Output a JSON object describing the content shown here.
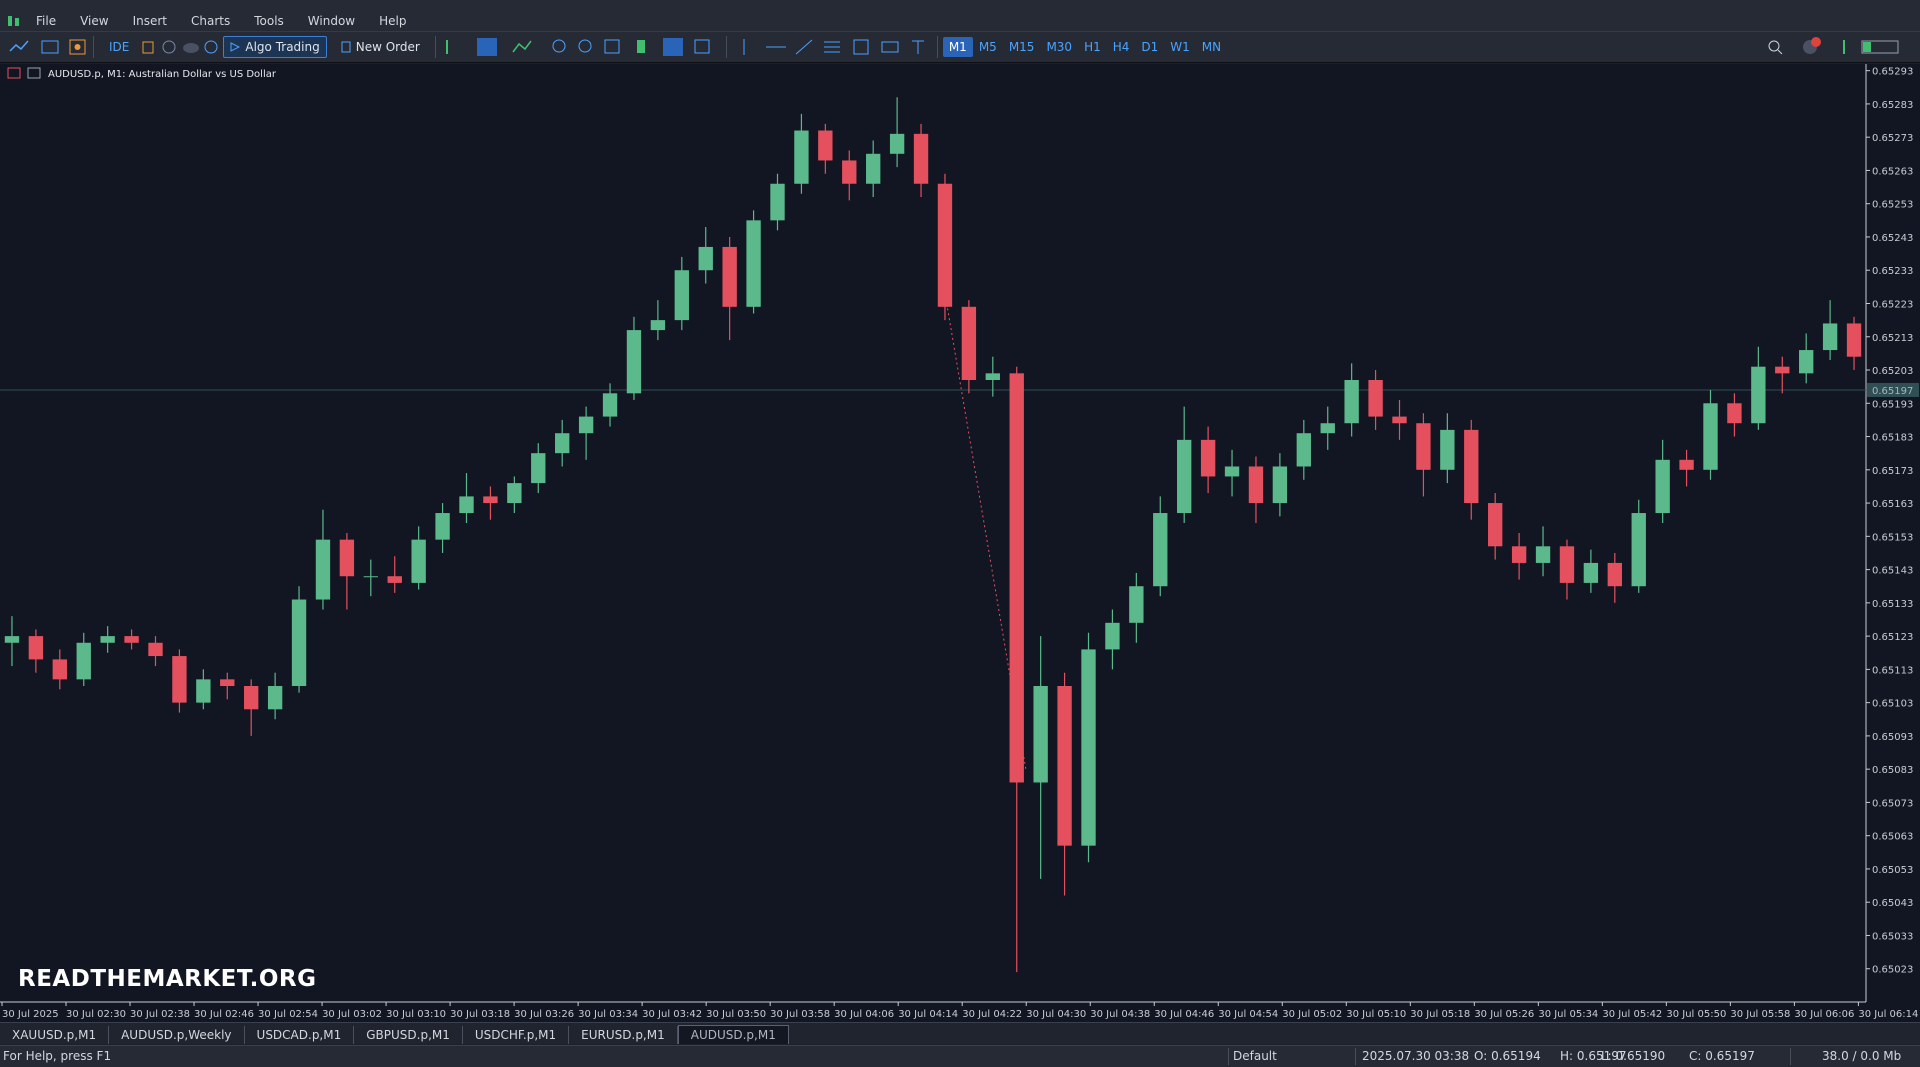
{
  "menu": [
    "File",
    "View",
    "Insert",
    "Charts",
    "Tools",
    "Window",
    "Help"
  ],
  "toolbar": {
    "ide": "IDE",
    "algo_trading": "Algo Trading",
    "new_order": "New Order",
    "timeframes": [
      "M1",
      "M5",
      "M15",
      "M30",
      "H1",
      "H4",
      "D1",
      "W1",
      "MN"
    ]
  },
  "chart_data": {
    "type": "candlestick",
    "title": "AUDUSD.p, M1:  Australian Dollar vs US Dollar",
    "watermark": "READTHEMARKET.ORG",
    "up_color": "#5bb98c",
    "down_color": "#e5505f",
    "grid": false,
    "ylim": [
      0.65013,
      0.65295
    ],
    "yticks": [
      0.65293,
      0.65283,
      0.65273,
      0.65263,
      0.65253,
      0.65243,
      0.65233,
      0.65223,
      0.65213,
      0.65203,
      0.65193,
      0.65183,
      0.65173,
      0.65163,
      0.65153,
      0.65143,
      0.65133,
      0.65123,
      0.65113,
      0.65103,
      0.65093,
      0.65083,
      0.65073,
      0.65063,
      0.65053,
      0.65043,
      0.65033,
      0.65023
    ],
    "bid": 0.65197,
    "x_labels": [
      "30 Jul 2025",
      "30 Jul 02:30",
      "30 Jul 02:38",
      "30 Jul 02:46",
      "30 Jul 02:54",
      "30 Jul 03:02",
      "30 Jul 03:10",
      "30 Jul 03:18",
      "30 Jul 03:26",
      "30 Jul 03:34",
      "30 Jul 03:42",
      "30 Jul 03:50",
      "30 Jul 03:58",
      "30 Jul 04:06",
      "30 Jul 04:14",
      "30 Jul 04:22",
      "30 Jul 04:30",
      "30 Jul 04:38",
      "30 Jul 04:46",
      "30 Jul 04:54",
      "30 Jul 05:02",
      "30 Jul 05:10",
      "30 Jul 05:18",
      "30 Jul 05:26",
      "30 Jul 05:34",
      "30 Jul 05:42",
      "30 Jul 05:50",
      "30 Jul 05:58",
      "30 Jul 06:06",
      "30 Jul 06:14"
    ],
    "ohlc": [
      [
        0.65121,
        0.65129,
        0.65114,
        0.65123
      ],
      [
        0.65123,
        0.65125,
        0.65112,
        0.65116
      ],
      [
        0.65116,
        0.65119,
        0.65107,
        0.6511
      ],
      [
        0.6511,
        0.65124,
        0.65108,
        0.65121
      ],
      [
        0.65121,
        0.65126,
        0.65118,
        0.65123
      ],
      [
        0.65123,
        0.65125,
        0.65119,
        0.65121
      ],
      [
        0.65121,
        0.65123,
        0.65114,
        0.65117
      ],
      [
        0.65117,
        0.65119,
        0.651,
        0.65103
      ],
      [
        0.65103,
        0.65113,
        0.65101,
        0.6511
      ],
      [
        0.6511,
        0.65112,
        0.65104,
        0.65108
      ],
      [
        0.65108,
        0.6511,
        0.65093,
        0.65101
      ],
      [
        0.65101,
        0.65112,
        0.65098,
        0.65108
      ],
      [
        0.65108,
        0.65138,
        0.65106,
        0.65134
      ],
      [
        0.65134,
        0.65161,
        0.65131,
        0.65152
      ],
      [
        0.65152,
        0.65154,
        0.65131,
        0.65141
      ],
      [
        0.65141,
        0.65146,
        0.65135,
        0.65141
      ],
      [
        0.65141,
        0.65147,
        0.65136,
        0.65139
      ],
      [
        0.65139,
        0.65156,
        0.65137,
        0.65152
      ],
      [
        0.65152,
        0.65163,
        0.65148,
        0.6516
      ],
      [
        0.6516,
        0.65172,
        0.65157,
        0.65165
      ],
      [
        0.65165,
        0.65168,
        0.65158,
        0.65163
      ],
      [
        0.65163,
        0.65171,
        0.6516,
        0.65169
      ],
      [
        0.65169,
        0.65181,
        0.65166,
        0.65178
      ],
      [
        0.65178,
        0.65188,
        0.65174,
        0.65184
      ],
      [
        0.65184,
        0.65192,
        0.65176,
        0.65189
      ],
      [
        0.65189,
        0.65199,
        0.65186,
        0.65196
      ],
      [
        0.65196,
        0.65219,
        0.65194,
        0.65215
      ],
      [
        0.65215,
        0.65224,
        0.65212,
        0.65218
      ],
      [
        0.65218,
        0.65237,
        0.65215,
        0.65233
      ],
      [
        0.65233,
        0.65246,
        0.65229,
        0.6524
      ],
      [
        0.6524,
        0.65243,
        0.65212,
        0.65222
      ],
      [
        0.65222,
        0.65251,
        0.6522,
        0.65248
      ],
      [
        0.65248,
        0.65262,
        0.65245,
        0.65259
      ],
      [
        0.65259,
        0.6528,
        0.65256,
        0.65275
      ],
      [
        0.65275,
        0.65277,
        0.65262,
        0.65266
      ],
      [
        0.65266,
        0.65269,
        0.65254,
        0.65259
      ],
      [
        0.65259,
        0.65272,
        0.65255,
        0.65268
      ],
      [
        0.65268,
        0.65285,
        0.65264,
        0.65274
      ],
      [
        0.65274,
        0.65277,
        0.65255,
        0.65259
      ],
      [
        0.65259,
        0.65262,
        0.65218,
        0.65222
      ],
      [
        0.65222,
        0.65224,
        0.65196,
        0.652
      ],
      [
        0.652,
        0.65207,
        0.65195,
        0.65202
      ],
      [
        0.65202,
        0.65204,
        0.65022,
        0.65079
      ],
      [
        0.65079,
        0.65123,
        0.6505,
        0.65108
      ],
      [
        0.65108,
        0.65112,
        0.65045,
        0.6506
      ],
      [
        0.6506,
        0.65124,
        0.65055,
        0.65119
      ],
      [
        0.65119,
        0.65131,
        0.65113,
        0.65127
      ],
      [
        0.65127,
        0.65142,
        0.65121,
        0.65138
      ],
      [
        0.65138,
        0.65165,
        0.65135,
        0.6516
      ],
      [
        0.6516,
        0.65192,
        0.65157,
        0.65182
      ],
      [
        0.65182,
        0.65186,
        0.65166,
        0.65171
      ],
      [
        0.65171,
        0.65179,
        0.65165,
        0.65174
      ],
      [
        0.65174,
        0.65177,
        0.65157,
        0.65163
      ],
      [
        0.65163,
        0.65178,
        0.65159,
        0.65174
      ],
      [
        0.65174,
        0.65188,
        0.6517,
        0.65184
      ],
      [
        0.65184,
        0.65192,
        0.65179,
        0.65187
      ],
      [
        0.65187,
        0.65205,
        0.65183,
        0.652
      ],
      [
        0.652,
        0.65203,
        0.65185,
        0.65189
      ],
      [
        0.65189,
        0.65194,
        0.65182,
        0.65187
      ],
      [
        0.65187,
        0.6519,
        0.65165,
        0.65173
      ],
      [
        0.65173,
        0.6519,
        0.65169,
        0.65185
      ],
      [
        0.65185,
        0.65188,
        0.65158,
        0.65163
      ],
      [
        0.65163,
        0.65166,
        0.65146,
        0.6515
      ],
      [
        0.6515,
        0.65154,
        0.6514,
        0.65145
      ],
      [
        0.65145,
        0.65156,
        0.65141,
        0.6515
      ],
      [
        0.6515,
        0.65152,
        0.65134,
        0.65139
      ],
      [
        0.65139,
        0.65149,
        0.65136,
        0.65145
      ],
      [
        0.65145,
        0.65148,
        0.65133,
        0.65138
      ],
      [
        0.65138,
        0.65164,
        0.65136,
        0.6516
      ],
      [
        0.6516,
        0.65182,
        0.65157,
        0.65176
      ],
      [
        0.65176,
        0.65179,
        0.65168,
        0.65173
      ],
      [
        0.65173,
        0.65197,
        0.6517,
        0.65193
      ],
      [
        0.65193,
        0.65196,
        0.65183,
        0.65187
      ],
      [
        0.65187,
        0.6521,
        0.65185,
        0.65204
      ],
      [
        0.65204,
        0.65207,
        0.65196,
        0.65202
      ],
      [
        0.65202,
        0.65214,
        0.65199,
        0.65209
      ],
      [
        0.65209,
        0.65224,
        0.65206,
        0.65217
      ],
      [
        0.65217,
        0.65219,
        0.65203,
        0.65207
      ]
    ]
  },
  "tabs": [
    "XAUUSD.p,M1",
    "AUDUSD.p,Weekly",
    "USDCAD.p,M1",
    "GBPUSD.p,M1",
    "USDCHF.p,M1",
    "EURUSD.p,M1",
    "AUDUSD.p,M1"
  ],
  "status": {
    "help": "For Help, press F1",
    "profile": "Default",
    "time": "2025.07.30 03:38",
    "open": "O: 0.65194",
    "high": "H: 0.65197",
    "low": "L: 0.65190",
    "close": "C: 0.65197",
    "traffic": "38.0 / 0.0 Mb"
  }
}
